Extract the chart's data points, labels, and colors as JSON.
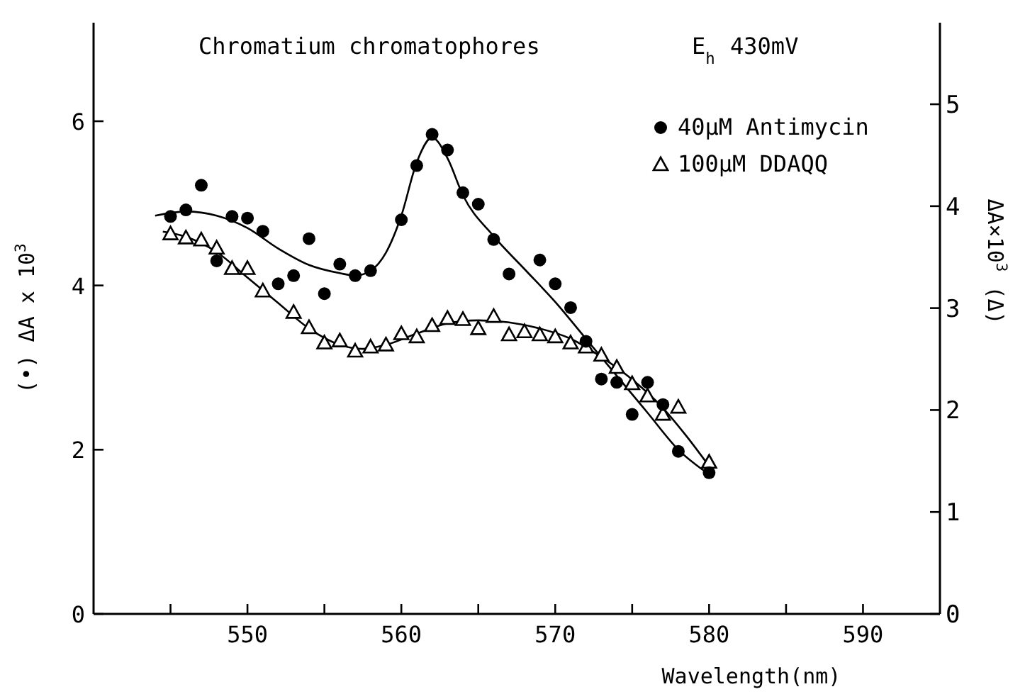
{
  "chart_data": {
    "type": "scatter",
    "title": "Chromatium chromatophores",
    "annotations": [
      "E$_{h}$ 430mV"
    ],
    "xlabel": "Wavelength(nm)",
    "ylabel": "(•) ΔA x 10$^{3}$",
    "y2label": "ΔA×10$^{3}$ (Δ)",
    "xlim": [
      540,
      595
    ],
    "xticks": [
      {
        "value": 545,
        "label": null
      },
      550,
      {
        "value": 555,
        "label": null
      },
      560,
      {
        "value": 565,
        "label": null
      },
      570,
      {
        "value": 575,
        "label": null
      },
      580,
      {
        "value": 585,
        "label": null
      },
      590
    ],
    "ylim": [
      0,
      7.2
    ],
    "yticks": [
      0,
      2,
      4,
      6
    ],
    "y2lim": [
      0,
      5.8
    ],
    "y2ticks": [
      0,
      1,
      2,
      3,
      4,
      5
    ],
    "grid": false,
    "legend": "top right",
    "series": [
      {
        "name": "40μM Antimycin",
        "marker": "circle",
        "color": "#000000",
        "x": [
          545,
          546,
          547,
          548,
          549,
          550,
          551,
          552,
          553,
          554,
          555,
          556,
          557,
          558,
          560,
          561,
          562,
          563,
          564,
          565,
          566,
          567,
          569,
          570,
          571,
          572,
          573,
          574,
          575,
          576,
          577,
          578,
          580
        ],
        "values": [
          4.84,
          4.92,
          5.22,
          4.3,
          4.84,
          4.82,
          4.66,
          4.02,
          4.12,
          4.57,
          3.9,
          4.26,
          4.12,
          4.18,
          4.8,
          5.46,
          5.84,
          5.65,
          5.13,
          4.99,
          4.56,
          4.14,
          4.31,
          4.02,
          3.73,
          3.32,
          2.86,
          2.82,
          2.43,
          2.82,
          2.55,
          1.98,
          1.72
        ]
      },
      {
        "name": "100μM DDAQQ",
        "marker": "triangle",
        "axis": "y2",
        "color": "#000000",
        "x": [
          545,
          546,
          547,
          548,
          549,
          550,
          551,
          553,
          554,
          555,
          556,
          557,
          558,
          559,
          560,
          561,
          562,
          563,
          564,
          565,
          566,
          567,
          568,
          569,
          570,
          571,
          572,
          573,
          574,
          575,
          576,
          577,
          578,
          580
        ],
        "values": [
          3.73,
          3.69,
          3.67,
          3.59,
          3.39,
          3.39,
          3.17,
          2.96,
          2.81,
          2.66,
          2.68,
          2.58,
          2.62,
          2.64,
          2.75,
          2.72,
          2.83,
          2.9,
          2.89,
          2.8,
          2.92,
          2.74,
          2.77,
          2.74,
          2.72,
          2.66,
          2.62,
          2.54,
          2.42,
          2.26,
          2.14,
          1.96,
          2.03,
          1.49
        ]
      },
      {
        "type": "line",
        "color": "#000000",
        "line_style": "solid",
        "x": [
          544,
          546,
          548,
          550,
          552,
          554,
          556,
          557,
          558,
          559,
          560,
          561,
          562,
          563,
          564,
          566,
          568,
          570,
          572,
          574,
          576,
          578,
          580
        ],
        "values": [
          4.85,
          4.9,
          4.85,
          4.7,
          4.45,
          4.25,
          4.15,
          4.12,
          4.18,
          4.4,
          4.85,
          5.5,
          5.8,
          5.55,
          5.1,
          4.6,
          4.2,
          3.8,
          3.35,
          2.9,
          2.45,
          2.0,
          1.7
        ]
      },
      {
        "type": "line",
        "axis": "y2",
        "color": "#000000",
        "line_style": "solid",
        "x": [
          544.5,
          546,
          548,
          550,
          552,
          554,
          556,
          557.5,
          559,
          561,
          563,
          565,
          567,
          569,
          571,
          573,
          575,
          577,
          578.5,
          580
        ],
        "values": [
          3.75,
          3.7,
          3.55,
          3.3,
          3.05,
          2.8,
          2.64,
          2.6,
          2.64,
          2.75,
          2.85,
          2.88,
          2.86,
          2.8,
          2.7,
          2.52,
          2.3,
          2.02,
          1.75,
          1.45
        ]
      }
    ]
  }
}
